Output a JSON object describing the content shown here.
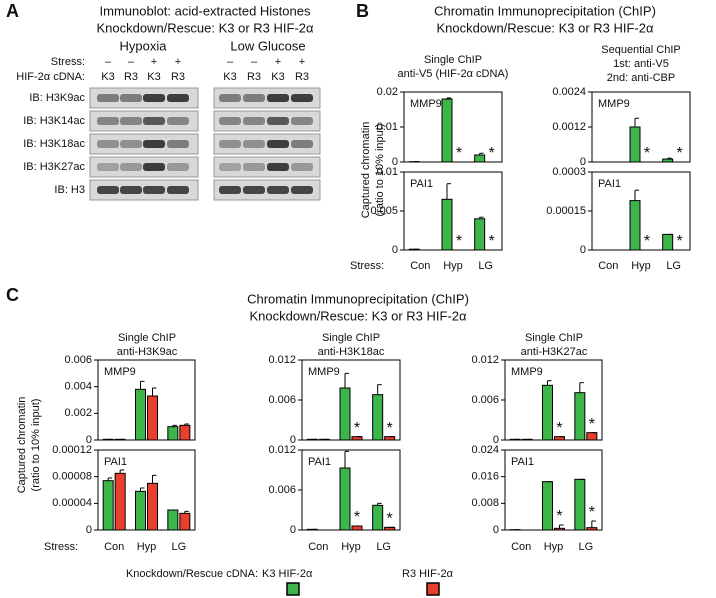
{
  "panel_a": {
    "label": "A",
    "title": [
      "Immunoblot: acid-extracted Histones",
      "Knockdown/Rescue: K3 or R3 HIF-2α"
    ],
    "groups": [
      "Hypoxia",
      "Low Glucose"
    ],
    "stress_label": "Stress:",
    "stress": [
      "–",
      "–",
      "+",
      "+"
    ],
    "cdna_label": "HIF-2α cDNA:",
    "cdna": [
      "K3",
      "R3",
      "K3",
      "R3"
    ],
    "rows": [
      "IB: H3K9ac",
      "IB: H3K14ac",
      "IB: H3K18ac",
      "IB: H3K27ac",
      "IB: H3"
    ]
  },
  "panel_b": {
    "label": "B",
    "title": [
      "Chromatin Immunoprecipitation (ChIP)",
      "Knockdown/Rescue: K3 or R3 HIF-2α"
    ],
    "columns": [
      [
        "Single ChIP",
        "anti-V5 (HIF-2α cDNA)"
      ],
      [
        "Sequential ChIP",
        "1st: anti-V5",
        "2nd: anti-CBP"
      ]
    ],
    "y_label": [
      "Captured chromatin",
      "(ratio to 10% input)"
    ],
    "x_label": "Stress:"
  },
  "panel_c": {
    "label": "C",
    "title": [
      "Chromatin Immunoprecipitation (ChIP)",
      "Knockdown/Rescue: K3 or R3 HIF-2α"
    ],
    "columns": [
      [
        "Single ChIP",
        "anti-H3K9ac"
      ],
      [
        "Single ChIP",
        "anti-H3K18ac"
      ],
      [
        "Single ChIP",
        "anti-H3K27ac"
      ]
    ],
    "y_label": [
      "Captured chromatin",
      "(ratio to 10% input)"
    ],
    "x_label": "Stress:"
  },
  "legend_title": "Knockdown/Rescue cDNA:",
  "chart_data": [
    {
      "type": "bar",
      "title": "MMP9",
      "categories": [
        "Con",
        "Hyp",
        "LG"
      ],
      "ylim": [
        0,
        0.02
      ],
      "yticks": [
        0,
        0.01,
        0.02
      ],
      "series": [
        {
          "name": "K3 HIF-2α",
          "color": "#3db54a",
          "values": [
            0.0001,
            0.018,
            0.002
          ],
          "errors": [
            0,
            0.0003,
            0.0005
          ]
        },
        {
          "name": "R3 HIF-2α",
          "color": "#e8402c",
          "values": [
            0,
            0,
            0
          ],
          "errors": [
            0,
            0,
            0
          ],
          "markers": [
            null,
            "*",
            "*"
          ]
        }
      ]
    },
    {
      "type": "bar",
      "title": "PAI1",
      "categories": [
        "Con",
        "Hyp",
        "LG"
      ],
      "ylim": [
        0,
        0.01
      ],
      "yticks": [
        0,
        0.005,
        0.01
      ],
      "series": [
        {
          "name": "K3 HIF-2α",
          "color": "#3db54a",
          "values": [
            0.0001,
            0.0065,
            0.004
          ],
          "errors": [
            0,
            0.002,
            0.0002
          ]
        },
        {
          "name": "R3 HIF-2α",
          "color": "#e8402c",
          "values": [
            0,
            0,
            0
          ],
          "errors": [
            0,
            0,
            0
          ],
          "markers": [
            null,
            "*",
            "*"
          ]
        }
      ]
    },
    {
      "type": "bar",
      "title": "MMP9",
      "categories": [
        "Con",
        "Hyp",
        "LG"
      ],
      "ylim": [
        0,
        0.0024
      ],
      "yticks": [
        0,
        0.0012,
        0.0024
      ],
      "series": [
        {
          "name": "K3 HIF-2α",
          "color": "#3db54a",
          "values": [
            0,
            0.0012,
            0.0001
          ],
          "errors": [
            0,
            0.0003,
            3e-05
          ]
        },
        {
          "name": "R3 HIF-2α",
          "color": "#e8402c",
          "values": [
            0,
            0,
            0
          ],
          "errors": [
            0,
            0,
            0
          ],
          "markers": [
            null,
            "*",
            "*"
          ]
        }
      ]
    },
    {
      "type": "bar",
      "title": "PAI1",
      "categories": [
        "Con",
        "Hyp",
        "LG"
      ],
      "ylim": [
        0,
        0.0003
      ],
      "yticks": [
        0,
        0.00015,
        0.0003
      ],
      "series": [
        {
          "name": "K3 HIF-2α",
          "color": "#3db54a",
          "values": [
            0,
            0.00019,
            6e-05
          ],
          "errors": [
            0,
            4e-05,
            0
          ]
        },
        {
          "name": "R3 HIF-2α",
          "color": "#e8402c",
          "values": [
            0,
            0,
            0
          ],
          "errors": [
            0,
            0,
            0
          ],
          "markers": [
            null,
            "*",
            "*"
          ]
        }
      ]
    },
    {
      "type": "bar",
      "title": "MMP9",
      "categories": [
        "Con",
        "Hyp",
        "LG"
      ],
      "ylim": [
        0,
        0.006
      ],
      "yticks": [
        0,
        0.002,
        0.004,
        0.006
      ],
      "series": [
        {
          "name": "K3 HIF-2α",
          "color": "#3db54a",
          "values": [
            5e-05,
            0.0038,
            0.001
          ],
          "errors": [
            0,
            0.0006,
            0.0001
          ]
        },
        {
          "name": "R3 HIF-2α",
          "color": "#e8402c",
          "values": [
            5e-05,
            0.0033,
            0.0011
          ],
          "errors": [
            0,
            0.0006,
            0.0001
          ]
        }
      ]
    },
    {
      "type": "bar",
      "title": "PAI1",
      "categories": [
        "Con",
        "Hyp",
        "LG"
      ],
      "ylim": [
        0,
        0.00012
      ],
      "yticks": [
        0,
        4e-05,
        8e-05,
        0.00012
      ],
      "series": [
        {
          "name": "K3 HIF-2α",
          "color": "#3db54a",
          "values": [
            7.4e-05,
            5.8e-05,
            3e-05
          ],
          "errors": [
            4e-06,
            5e-06,
            0
          ]
        },
        {
          "name": "R3 HIF-2α",
          "color": "#e8402c",
          "values": [
            8.5e-05,
            7e-05,
            2.5e-05
          ],
          "errors": [
            5e-06,
            1.2e-05,
            3e-06
          ]
        }
      ]
    },
    {
      "type": "bar",
      "title": "MMP9",
      "categories": [
        "Con",
        "Hyp",
        "LG"
      ],
      "ylim": [
        0,
        0.012
      ],
      "yticks": [
        0,
        0.006,
        0.012
      ],
      "series": [
        {
          "name": "K3 HIF-2α",
          "color": "#3db54a",
          "values": [
            0.0001,
            0.0078,
            0.0068
          ],
          "errors": [
            0,
            0.0022,
            0.0015
          ]
        },
        {
          "name": "R3 HIF-2α",
          "color": "#e8402c",
          "values": [
            0.0001,
            0.0005,
            0.0005
          ],
          "errors": [
            0,
            0,
            0
          ],
          "markers": [
            null,
            "*",
            "*"
          ]
        }
      ]
    },
    {
      "type": "bar",
      "title": "PAI1",
      "categories": [
        "Con",
        "Hyp",
        "LG"
      ],
      "ylim": [
        0,
        0.012
      ],
      "yticks": [
        0,
        0.006,
        0.012
      ],
      "series": [
        {
          "name": "K3 HIF-2α",
          "color": "#3db54a",
          "values": [
            0.0001,
            0.0093,
            0.0037
          ],
          "errors": [
            0,
            0.0025,
            0.0003
          ]
        },
        {
          "name": "R3 HIF-2α",
          "color": "#e8402c",
          "values": [
            0,
            0.0006,
            0.0004
          ],
          "errors": [
            0,
            0,
            0
          ],
          "markers": [
            null,
            "*",
            "*"
          ]
        }
      ]
    },
    {
      "type": "bar",
      "title": "MMP9",
      "categories": [
        "Con",
        "Hyp",
        "LG"
      ],
      "ylim": [
        0,
        0.012
      ],
      "yticks": [
        0,
        0.006,
        0.012
      ],
      "series": [
        {
          "name": "K3 HIF-2α",
          "color": "#3db54a",
          "values": [
            0.0001,
            0.0082,
            0.0071
          ],
          "errors": [
            0,
            0.0007,
            0.0015
          ]
        },
        {
          "name": "R3 HIF-2α",
          "color": "#e8402c",
          "values": [
            0.0001,
            0.0005,
            0.0011
          ],
          "errors": [
            0,
            0,
            0
          ],
          "markers": [
            null,
            "*",
            "*"
          ]
        }
      ]
    },
    {
      "type": "bar",
      "title": "PAI1",
      "categories": [
        "Con",
        "Hyp",
        "LG"
      ],
      "ylim": [
        0,
        0.024
      ],
      "yticks": [
        0,
        0.008,
        0.016,
        0.024
      ],
      "series": [
        {
          "name": "K3 HIF-2α",
          "color": "#3db54a",
          "values": [
            0.0001,
            0.0145,
            0.0152
          ],
          "errors": [
            0,
            0,
            0
          ]
        },
        {
          "name": "R3 HIF-2α",
          "color": "#e8402c",
          "values": [
            0,
            0.0005,
            0.0007
          ],
          "errors": [
            0,
            0.001,
            0.002
          ],
          "markers": [
            null,
            "*",
            "*"
          ]
        }
      ]
    }
  ]
}
